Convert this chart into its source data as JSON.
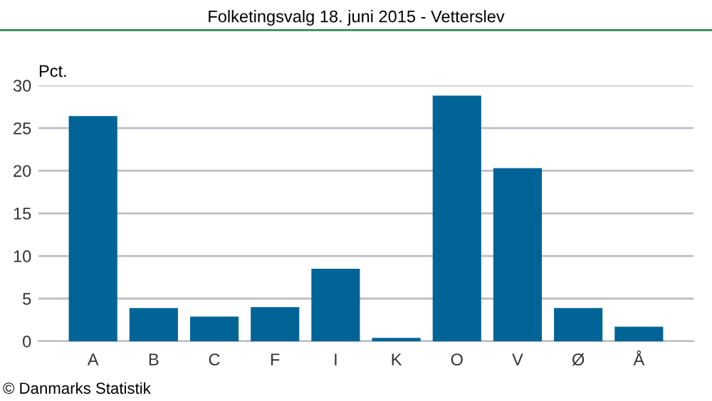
{
  "chart_data": {
    "type": "bar",
    "title": "Folketingsvalg 18. juni 2015 - Vetterslev",
    "ylabel": "Pct.",
    "categories": [
      "A",
      "B",
      "C",
      "F",
      "I",
      "K",
      "O",
      "V",
      "Ø",
      "Å"
    ],
    "values": [
      26.4,
      3.9,
      2.9,
      4.0,
      8.5,
      0.4,
      28.8,
      20.3,
      3.9,
      1.7
    ],
    "color": "#006496",
    "ylim": [
      0,
      30
    ],
    "yticks": [
      0,
      5,
      10,
      15,
      20,
      25,
      30
    ],
    "grid": "y",
    "annotations": [
      "© Danmarks Statistik"
    ]
  }
}
